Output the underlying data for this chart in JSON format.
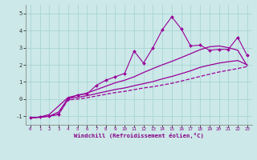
{
  "xlabel": "Windchill (Refroidissement éolien,°C)",
  "bg_color": "#cce8e8",
  "line_color": "#990099",
  "grid_color": "#aad4d4",
  "x_data": [
    0,
    1,
    2,
    3,
    4,
    5,
    6,
    7,
    8,
    9,
    10,
    11,
    12,
    13,
    14,
    15,
    16,
    17,
    18,
    19,
    20,
    21,
    22,
    23
  ],
  "y_main": [
    -1.1,
    -1.05,
    -1.0,
    -0.9,
    0.0,
    0.25,
    0.3,
    0.8,
    1.1,
    1.3,
    1.5,
    2.8,
    2.1,
    3.0,
    4.05,
    4.8,
    4.1,
    3.1,
    3.15,
    2.85,
    2.9,
    2.9,
    3.6,
    2.55
  ],
  "y_line_low": [
    -1.1,
    -1.05,
    -1.0,
    -0.85,
    -0.05,
    0.0,
    0.08,
    0.18,
    0.28,
    0.38,
    0.45,
    0.55,
    0.65,
    0.72,
    0.82,
    0.92,
    1.05,
    1.18,
    1.32,
    1.45,
    1.58,
    1.68,
    1.78,
    1.9
  ],
  "y_line_mid": [
    -1.1,
    -1.05,
    -1.0,
    -0.75,
    0.05,
    0.1,
    0.2,
    0.32,
    0.44,
    0.56,
    0.65,
    0.78,
    0.9,
    1.02,
    1.18,
    1.32,
    1.48,
    1.65,
    1.85,
    1.98,
    2.1,
    2.18,
    2.25,
    2.0
  ],
  "y_line_high": [
    -1.1,
    -1.05,
    -0.9,
    -0.4,
    0.1,
    0.22,
    0.35,
    0.55,
    0.75,
    0.95,
    1.1,
    1.3,
    1.55,
    1.78,
    2.0,
    2.2,
    2.42,
    2.65,
    2.88,
    3.05,
    3.1,
    3.0,
    2.85,
    1.95
  ],
  "xlim": [
    -0.5,
    23.5
  ],
  "ylim": [
    -1.5,
    5.5
  ],
  "yticks": [
    -1,
    0,
    1,
    2,
    3,
    4,
    5
  ],
  "xticks": [
    0,
    1,
    2,
    3,
    4,
    5,
    6,
    7,
    8,
    9,
    10,
    11,
    12,
    13,
    14,
    15,
    16,
    17,
    18,
    19,
    20,
    21,
    22,
    23
  ],
  "xtick_labels": [
    "0",
    "1",
    "2",
    "3",
    "4",
    "5",
    "6",
    "7",
    "8",
    "9",
    "10",
    "11",
    "12",
    "13",
    "14",
    "15",
    "16",
    "17",
    "18",
    "19",
    "20",
    "21",
    "22",
    "23"
  ]
}
